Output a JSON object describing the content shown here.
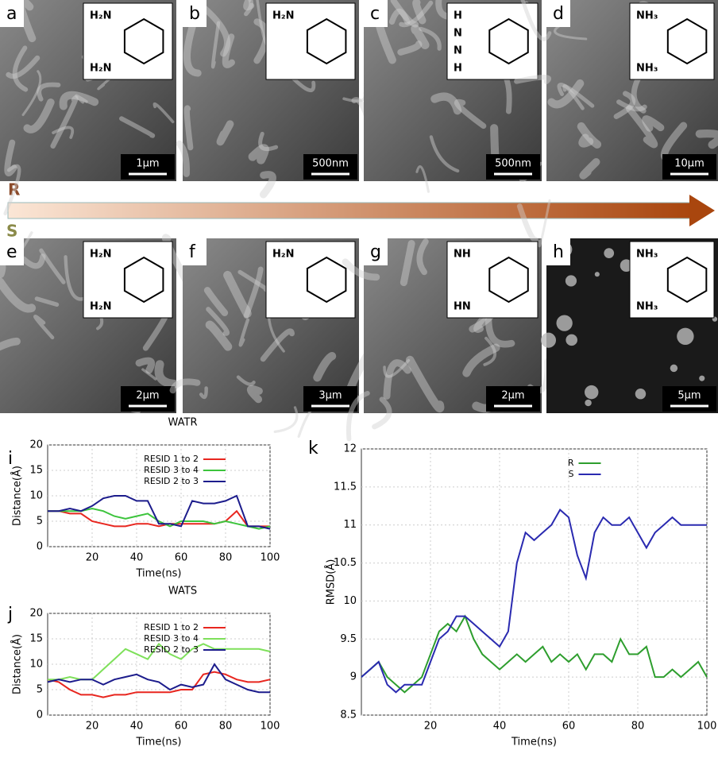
{
  "panels": [
    {
      "label": "a",
      "scale": "1µm",
      "groups": [
        "H₂N",
        "H₂N"
      ]
    },
    {
      "label": "b",
      "scale": "500nm",
      "groups": [
        "H₂N"
      ]
    },
    {
      "label": "c",
      "scale": "500nm",
      "groups": [
        "H",
        "N",
        "N",
        "H"
      ]
    },
    {
      "label": "d",
      "scale": "10µm",
      "groups": [
        "NH₃",
        "NH₃"
      ]
    },
    {
      "label": "e",
      "scale": "2µm",
      "groups": [
        "H₂N",
        "H₂N"
      ]
    },
    {
      "label": "f",
      "scale": "3µm",
      "groups": [
        "H₂N"
      ]
    },
    {
      "label": "g",
      "scale": "2µm",
      "groups": [
        "NH",
        "HN"
      ]
    },
    {
      "label": "h",
      "scale": "5µm",
      "groups": [
        "NH₃",
        "NH₃"
      ]
    }
  ],
  "arrow_labels": {
    "r": "R",
    "s": "S"
  },
  "chart_data": [
    {
      "type": "line",
      "panel_label": "i",
      "title": "WATR",
      "x_label": "Time(ns)",
      "y_label": "Distance(Å)",
      "xlim": [
        0,
        100
      ],
      "xticks": [
        20,
        40,
        60,
        80,
        100
      ],
      "ylim": [
        0,
        20
      ],
      "yticks": [
        0,
        5,
        10,
        15,
        20
      ],
      "grid": true,
      "legend": "top",
      "x": [
        0,
        5,
        10,
        15,
        20,
        25,
        30,
        35,
        40,
        45,
        50,
        55,
        60,
        65,
        70,
        75,
        80,
        85,
        90,
        95,
        100
      ],
      "series": [
        {
          "name": "RESID 1 to 2",
          "color": "#e8261f",
          "values": [
            7,
            7,
            6.5,
            6.5,
            5,
            4.5,
            4,
            4,
            4.5,
            4.5,
            4,
            4.5,
            4.5,
            4.5,
            4.5,
            4.5,
            5,
            7,
            4,
            4,
            4
          ]
        },
        {
          "name": "RESID 3 to 4",
          "color": "#3cc43c",
          "values": [
            7,
            7,
            7,
            7,
            7.5,
            7,
            6,
            5.5,
            6,
            6.5,
            5,
            4,
            5,
            5,
            5,
            4.5,
            5,
            4.5,
            4,
            3.5,
            4
          ]
        },
        {
          "name": "RESID 2 to 3",
          "color": "#1c1c8c",
          "values": [
            7,
            7,
            7.5,
            7,
            8,
            9.5,
            10,
            10,
            9,
            9,
            4.5,
            4.5,
            4,
            9,
            8.5,
            8.5,
            9,
            10,
            4,
            4,
            3.5
          ]
        }
      ]
    },
    {
      "type": "line",
      "panel_label": "j",
      "title": "WATS",
      "x_label": "Time(ns)",
      "y_label": "Distance(Å)",
      "xlim": [
        0,
        100
      ],
      "xticks": [
        20,
        40,
        60,
        80,
        100
      ],
      "ylim": [
        0,
        20
      ],
      "yticks": [
        0,
        5,
        10,
        15,
        20
      ],
      "grid": true,
      "legend": "top",
      "x": [
        0,
        5,
        10,
        15,
        20,
        25,
        30,
        35,
        40,
        45,
        50,
        55,
        60,
        65,
        70,
        75,
        80,
        85,
        90,
        95,
        100
      ],
      "series": [
        {
          "name": "RESID 1 to 2",
          "color": "#e8261f",
          "values": [
            7,
            6.5,
            5,
            4,
            4,
            3.5,
            4,
            4,
            4.5,
            4.5,
            4.5,
            4.5,
            5,
            5,
            8,
            8.5,
            8,
            7,
            6.5,
            6.5,
            7
          ]
        },
        {
          "name": "RESID 3 to 4",
          "color": "#7ee05a",
          "values": [
            7,
            7,
            7.5,
            7,
            7,
            9,
            11,
            13,
            12,
            11,
            14,
            12,
            11,
            13,
            14,
            13,
            13,
            13,
            13,
            13,
            12.5
          ]
        },
        {
          "name": "RESID 2 to 3",
          "color": "#1c1c8c",
          "values": [
            6.5,
            7,
            6.5,
            7,
            7,
            6,
            7,
            7.5,
            8,
            7,
            6.5,
            5,
            6,
            5.5,
            6,
            10,
            7,
            6,
            5,
            4.5,
            4.5
          ]
        }
      ]
    },
    {
      "type": "line",
      "panel_label": "k",
      "x_label": "Time(ns)",
      "y_label": "RMSD(Å)",
      "xlim": [
        0,
        100
      ],
      "xticks": [
        20,
        40,
        60,
        80,
        100
      ],
      "ylim": [
        8.5,
        12
      ],
      "yticks": [
        8.5,
        9,
        9.5,
        10,
        10.5,
        11,
        11.5,
        12
      ],
      "grid": true,
      "legend": "top",
      "x": [
        0,
        2.5,
        5,
        7.5,
        10,
        12.5,
        15,
        17.5,
        20,
        22.5,
        25,
        27.5,
        30,
        32.5,
        35,
        37.5,
        40,
        42.5,
        45,
        47.5,
        50,
        52.5,
        55,
        57.5,
        60,
        62.5,
        65,
        67.5,
        70,
        72.5,
        75,
        77.5,
        80,
        82.5,
        85,
        87.5,
        90,
        92.5,
        95,
        97.5,
        100
      ],
      "series": [
        {
          "name": "R",
          "color": "#2e9e2e",
          "values": [
            9.0,
            9.1,
            9.2,
            9.0,
            8.9,
            8.8,
            8.9,
            9.0,
            9.3,
            9.6,
            9.7,
            9.6,
            9.8,
            9.5,
            9.3,
            9.2,
            9.1,
            9.2,
            9.3,
            9.2,
            9.3,
            9.4,
            9.2,
            9.3,
            9.2,
            9.3,
            9.1,
            9.3,
            9.3,
            9.2,
            9.5,
            9.3,
            9.3,
            9.4,
            9.0,
            9.0,
            9.1,
            9.0,
            9.1,
            9.2,
            9.0
          ]
        },
        {
          "name": "S",
          "color": "#2a2ab0",
          "values": [
            9.0,
            9.1,
            9.2,
            8.9,
            8.8,
            8.9,
            8.9,
            8.9,
            9.2,
            9.5,
            9.6,
            9.8,
            9.8,
            9.7,
            9.6,
            9.5,
            9.4,
            9.6,
            10.5,
            10.9,
            10.8,
            10.9,
            11.0,
            11.2,
            11.1,
            10.6,
            10.3,
            10.9,
            11.1,
            11.0,
            11.0,
            11.1,
            10.9,
            10.7,
            10.9,
            11.0,
            11.1,
            11.0,
            11.0,
            11.0,
            11.0
          ]
        }
      ]
    }
  ]
}
